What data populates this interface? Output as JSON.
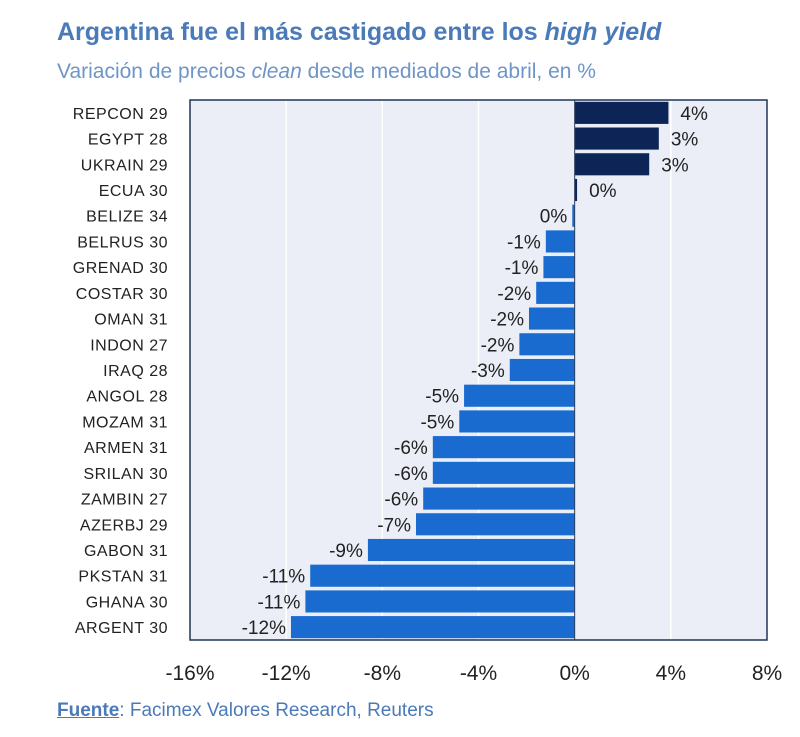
{
  "title_pre": "Argentina fue el más castigado entre los ",
  "title_em": "high yield",
  "subtitle_pre": "Variación de precios ",
  "subtitle_em": "clean",
  "subtitle_post": " desde mediados de abril, en %",
  "source_label": "Fuente",
  "source_text": ": Facimex Valores Research, Reuters",
  "colors": {
    "positive": "#0c2456",
    "negative": "#1a6bd0",
    "plot_bg": "#ebeef7",
    "frame": "#1f3557",
    "grid": "#ffffff"
  },
  "chart_data": {
    "type": "bar",
    "orientation": "horizontal",
    "title": "Argentina fue el más castigado entre los high yield",
    "subtitle": "Variación de precios clean desde mediados de abril, en %",
    "categories": [
      "REPCON 29",
      "EGYPT 28",
      "UKRAIN 29",
      "ECUA 30",
      "BELIZE 34",
      "BELRUS 30",
      "GRENAD 30",
      "COSTAR 30",
      "OMAN 31",
      "INDON 27",
      "IRAQ 28",
      "ANGOL 28",
      "MOZAM 31",
      "ARMEN 31",
      "SRILAN 30",
      "ZAMBIN 27",
      "AZERBJ 29",
      "GABON 31",
      "PKSTAN 31",
      "GHANA 30",
      "ARGENT 30"
    ],
    "values": [
      3.9,
      3.5,
      3.1,
      0.1,
      -0.1,
      -1.2,
      -1.3,
      -1.6,
      -1.9,
      -2.3,
      -2.7,
      -4.6,
      -4.8,
      -5.9,
      -5.9,
      -6.3,
      -6.6,
      -8.6,
      -11.0,
      -11.2,
      -11.8
    ],
    "labels": [
      "4%",
      "3%",
      "3%",
      "0%",
      "0%",
      "-1%",
      "-1%",
      "-2%",
      "-2%",
      "-2%",
      "-3%",
      "-5%",
      "-5%",
      "-6%",
      "-6%",
      "-6%",
      "-7%",
      "-9%",
      "-11%",
      "-11%",
      "-12%"
    ],
    "xlim": [
      -16,
      8
    ],
    "xticks": [
      -16,
      -12,
      -8,
      -4,
      0,
      4,
      8
    ],
    "xtick_labels": [
      "-16%",
      "-12%",
      "-8%",
      "-4%",
      "0%",
      "4%",
      "8%"
    ]
  }
}
